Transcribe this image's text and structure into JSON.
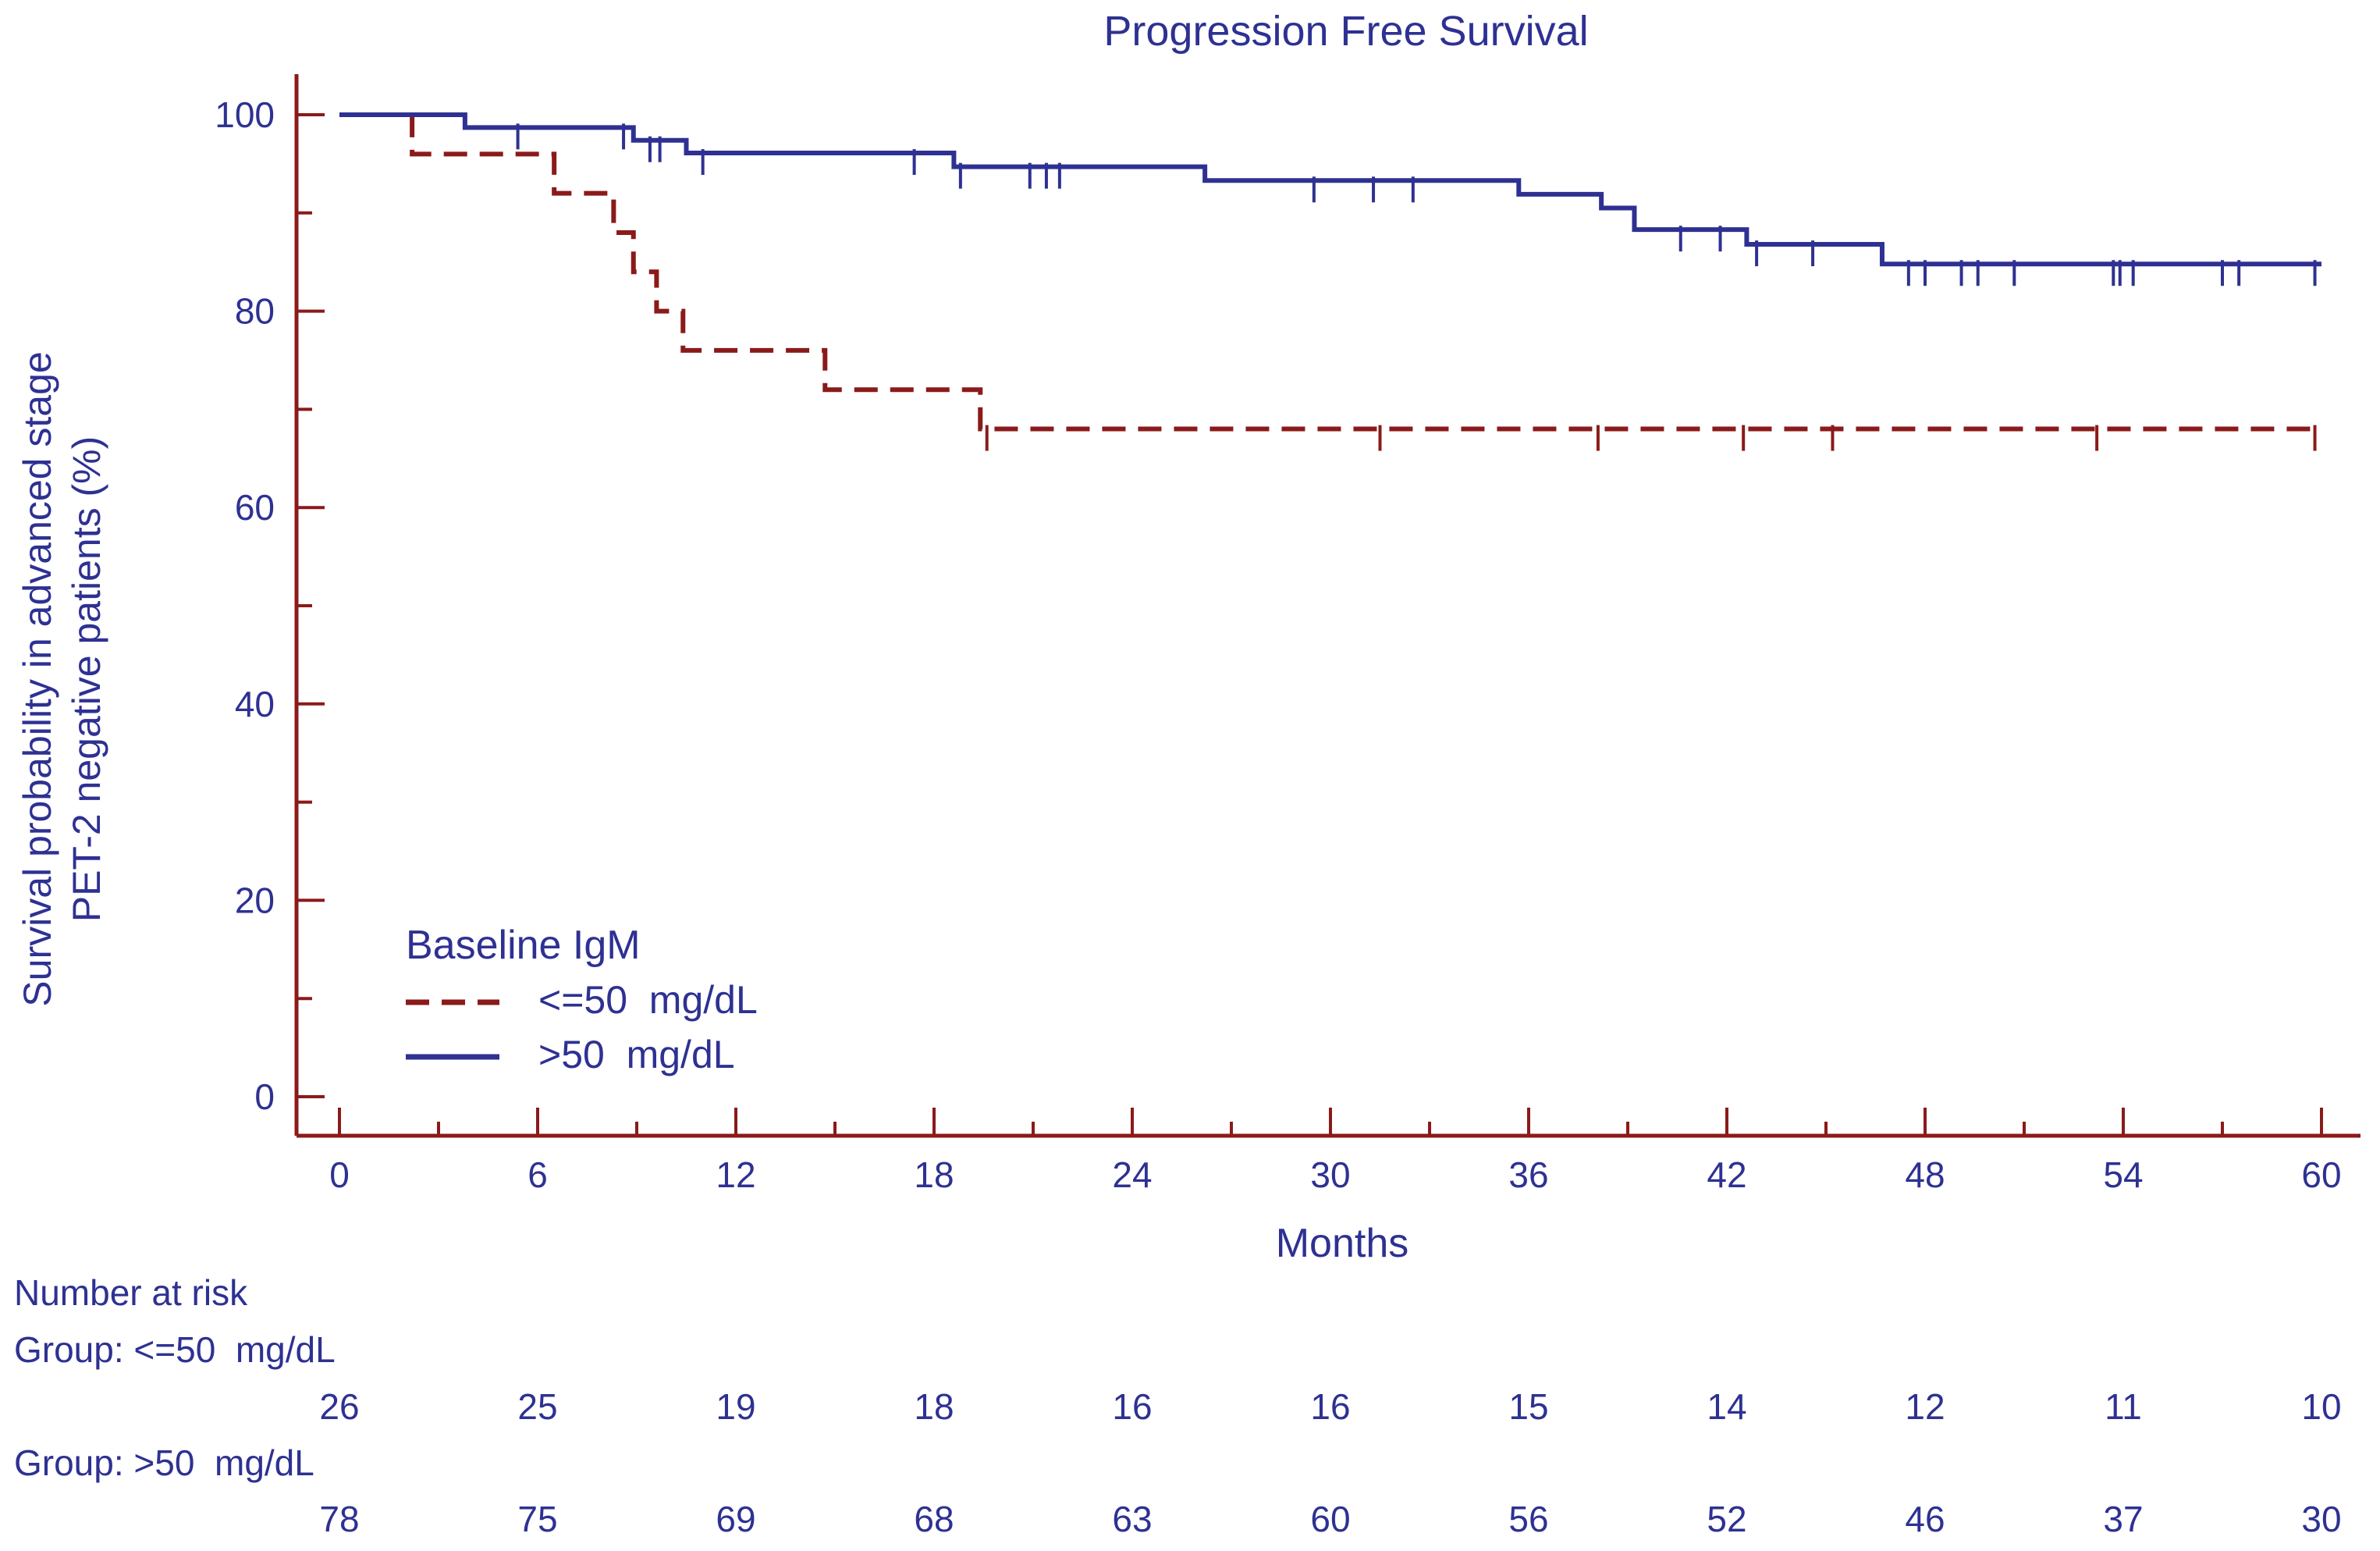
{
  "chart_data": {
    "type": "line",
    "title": "Progression Free Survival",
    "xlabel": "Months",
    "ylabel_lines": [
      "Survival probability in advanced stage",
      "PET-2 negative patients (%)"
    ],
    "xlim": [
      0,
      60
    ],
    "ylim": [
      0,
      100
    ],
    "x_ticks": [
      0,
      6,
      12,
      18,
      24,
      30,
      36,
      42,
      48,
      54,
      60
    ],
    "y_ticks": [
      0,
      20,
      40,
      60,
      80,
      100
    ],
    "legend": {
      "title": "Baseline IgM",
      "placement": "bottom-left"
    },
    "series": [
      {
        "name": "<=50  mg/dL",
        "style": "dashed",
        "color": "#8b1a1a",
        "steps": [
          [
            0,
            100
          ],
          [
            2.2,
            96
          ],
          [
            6.5,
            92
          ],
          [
            8.3,
            88
          ],
          [
            8.9,
            84
          ],
          [
            9.6,
            80
          ],
          [
            10.4,
            76
          ],
          [
            14.7,
            72
          ],
          [
            19.4,
            68
          ],
          [
            60,
            68
          ]
        ],
        "censored": [
          [
            19.6,
            68
          ],
          [
            31.5,
            68
          ],
          [
            38.1,
            68
          ],
          [
            42.5,
            68
          ],
          [
            45.2,
            68
          ],
          [
            53.2,
            68
          ],
          [
            59.8,
            68
          ]
        ]
      },
      {
        "name": ">50  mg/dL",
        "style": "solid",
        "color": "#2e3192",
        "steps": [
          [
            0,
            100
          ],
          [
            3.8,
            98.7
          ],
          [
            8.9,
            97.4
          ],
          [
            10.5,
            96.1
          ],
          [
            18.6,
            94.7
          ],
          [
            26.2,
            93.3
          ],
          [
            35.7,
            91.9
          ],
          [
            38.2,
            90.5
          ],
          [
            39.2,
            88.3
          ],
          [
            42.6,
            86.8
          ],
          [
            46.7,
            84.8
          ],
          [
            60,
            84.8
          ]
        ],
        "censored": [
          [
            5.4,
            98.7
          ],
          [
            8.6,
            98.7
          ],
          [
            9.4,
            97.4
          ],
          [
            9.7,
            97.4
          ],
          [
            11.0,
            96.1
          ],
          [
            17.4,
            96.1
          ],
          [
            18.8,
            94.7
          ],
          [
            20.9,
            94.7
          ],
          [
            21.4,
            94.7
          ],
          [
            21.8,
            94.7
          ],
          [
            29.5,
            93.3
          ],
          [
            31.3,
            93.3
          ],
          [
            32.5,
            93.3
          ],
          [
            40.6,
            88.3
          ],
          [
            41.8,
            88.3
          ],
          [
            42.9,
            86.8
          ],
          [
            44.6,
            86.8
          ],
          [
            47.5,
            84.8
          ],
          [
            48.0,
            84.8
          ],
          [
            49.1,
            84.8
          ],
          [
            49.6,
            84.8
          ],
          [
            50.7,
            84.8
          ],
          [
            53.7,
            84.8
          ],
          [
            53.9,
            84.8
          ],
          [
            54.3,
            84.8
          ],
          [
            57.0,
            84.8
          ],
          [
            57.5,
            84.8
          ],
          [
            59.8,
            84.8
          ]
        ]
      }
    ],
    "number_at_risk": {
      "heading": "Number at risk",
      "groups": [
        {
          "label": "Group: <=50  mg/dL",
          "values": [
            26,
            25,
            19,
            18,
            16,
            16,
            15,
            14,
            12,
            11,
            10
          ]
        },
        {
          "label": "Group: >50  mg/dL",
          "values": [
            78,
            75,
            69,
            68,
            63,
            60,
            56,
            52,
            46,
            37,
            30
          ]
        }
      ]
    }
  }
}
